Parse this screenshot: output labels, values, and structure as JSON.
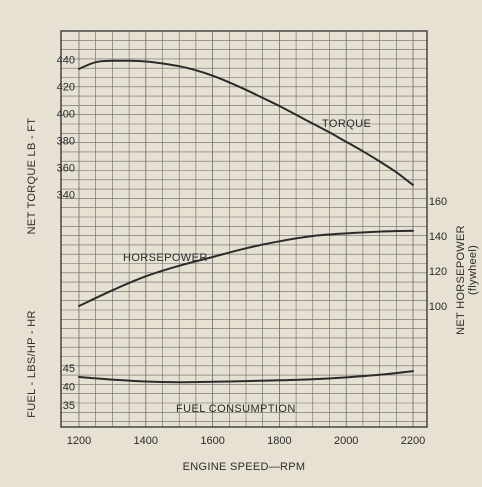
{
  "chart_data": {
    "type": "line",
    "xlabel": "ENGINE SPEED—RPM",
    "x_ticks": [
      "1200",
      "1400",
      "1600",
      "1800",
      "2000",
      "2200"
    ],
    "xlim": [
      1200,
      2200
    ],
    "panels": [
      {
        "id": "torque",
        "ylabel": "NET TORQUE   LB - FT",
        "y_ticks": [
          "440",
          "420",
          "400",
          "380",
          "360",
          "340"
        ],
        "ylim": [
          330,
          447
        ],
        "series": [
          {
            "name": "TORQUE",
            "x": [
              1200,
              1250,
              1300,
              1350,
              1400,
              1450,
              1500,
              1550,
              1600,
              1650,
              1700,
              1750,
              1800,
              1850,
              1900,
              1950,
              2000,
              2050,
              2100,
              2150,
              2200
            ],
            "y": [
              433,
              438,
              439,
              439,
              438.5,
              437,
              435,
              432,
              428,
              423,
              417.5,
              411.5,
              405.5,
              399,
              392.5,
              386,
              379,
              372,
              364.5,
              356.5,
              347
            ]
          }
        ]
      },
      {
        "id": "horsepower",
        "ylabel": "NET HORSEPOWER",
        "ylabel2": "(flywheel)",
        "y_ticks": [
          "160",
          "140",
          "120",
          "100"
        ],
        "ylim": [
          88,
          172
        ],
        "series": [
          {
            "name": "HORSEPOWER",
            "x": [
              1200,
              1300,
              1400,
              1500,
              1600,
              1700,
              1800,
              1900,
              2000,
              2100,
              2200
            ],
            "y": [
              100,
              109,
              117,
              123,
              128,
              133,
              137,
              140,
              141.5,
              142.5,
              143
            ]
          }
        ]
      },
      {
        "id": "fuel",
        "ylabel": "FUEL - LBS/HP - HR",
        "y_ticks": [
          ".45",
          ".40",
          ".35"
        ],
        "ylim": [
          0.326,
          0.472
        ],
        "series": [
          {
            "name": "FUEL CONSUMPTION",
            "x": [
              1200,
              1300,
              1400,
              1500,
              1600,
              1700,
              1800,
              1900,
              2000,
              2100,
              2200
            ],
            "y": [
              0.426,
              0.419,
              0.414,
              0.412,
              0.413,
              0.415,
              0.417,
              0.42,
              0.425,
              0.432,
              0.442
            ]
          }
        ]
      }
    ],
    "grid": true,
    "colors": {
      "background": "#e6e1d2",
      "line": "#2b2b2b",
      "grid": "#5a5a5a"
    }
  }
}
